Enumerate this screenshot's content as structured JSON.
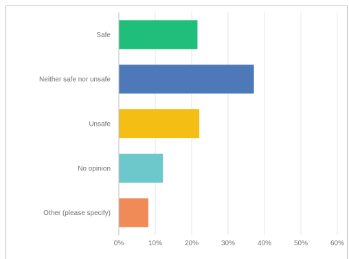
{
  "header": {
    "title_partial": ""
  },
  "chart_data": {
    "type": "bar",
    "orientation": "horizontal",
    "title": "",
    "xlabel": "",
    "ylabel": "",
    "categories": [
      "Safe",
      "Neither safe nor unsafe",
      "Unsafe",
      "No opinion",
      "Other (please specify)"
    ],
    "values": [
      21.5,
      37,
      22,
      12,
      8
    ],
    "unit": "%",
    "xlim": [
      0,
      60
    ],
    "xticks": [
      "0%",
      "10%",
      "20%",
      "30%",
      "40%",
      "50%",
      "60%"
    ],
    "grid": true,
    "legend": "none",
    "colors": [
      "#1fbe7a",
      "#4e79b8",
      "#f5be14",
      "#6dc8cc",
      "#f08a57"
    ]
  }
}
